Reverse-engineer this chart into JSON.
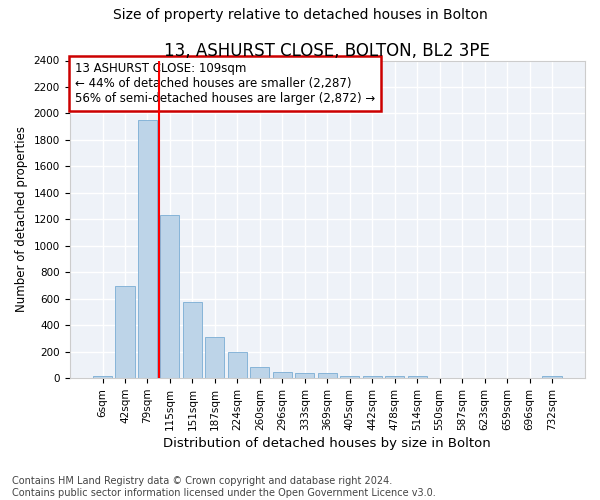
{
  "title": "13, ASHURST CLOSE, BOLTON, BL2 3PE",
  "subtitle": "Size of property relative to detached houses in Bolton",
  "xlabel": "Distribution of detached houses by size in Bolton",
  "ylabel": "Number of detached properties",
  "categories": [
    "6sqm",
    "42sqm",
    "79sqm",
    "115sqm",
    "151sqm",
    "187sqm",
    "224sqm",
    "260sqm",
    "296sqm",
    "333sqm",
    "369sqm",
    "405sqm",
    "442sqm",
    "478sqm",
    "514sqm",
    "550sqm",
    "587sqm",
    "623sqm",
    "659sqm",
    "696sqm",
    "732sqm"
  ],
  "bar_heights": [
    15,
    700,
    1950,
    1230,
    575,
    310,
    200,
    85,
    48,
    38,
    38,
    20,
    20,
    20,
    18,
    5,
    5,
    5,
    5,
    5,
    18
  ],
  "bar_color": "#bdd4e8",
  "bar_edge_color": "#7aadd4",
  "background_color": "#eef2f8",
  "grid_color": "#ffffff",
  "annotation_text_line1": "13 ASHURST CLOSE: 109sqm",
  "annotation_text_line2": "← 44% of detached houses are smaller (2,287)",
  "annotation_text_line3": "56% of semi-detached houses are larger (2,872) →",
  "annotation_box_color": "#cc0000",
  "red_line_x": 2.5,
  "ylim": [
    0,
    2400
  ],
  "yticks": [
    0,
    200,
    400,
    600,
    800,
    1000,
    1200,
    1400,
    1600,
    1800,
    2000,
    2200,
    2400
  ],
  "footer_line1": "Contains HM Land Registry data © Crown copyright and database right 2024.",
  "footer_line2": "Contains public sector information licensed under the Open Government Licence v3.0.",
  "title_fontsize": 12,
  "subtitle_fontsize": 10,
  "xlabel_fontsize": 9.5,
  "ylabel_fontsize": 8.5,
  "tick_fontsize": 7.5,
  "annotation_fontsize": 8.5,
  "footer_fontsize": 7
}
